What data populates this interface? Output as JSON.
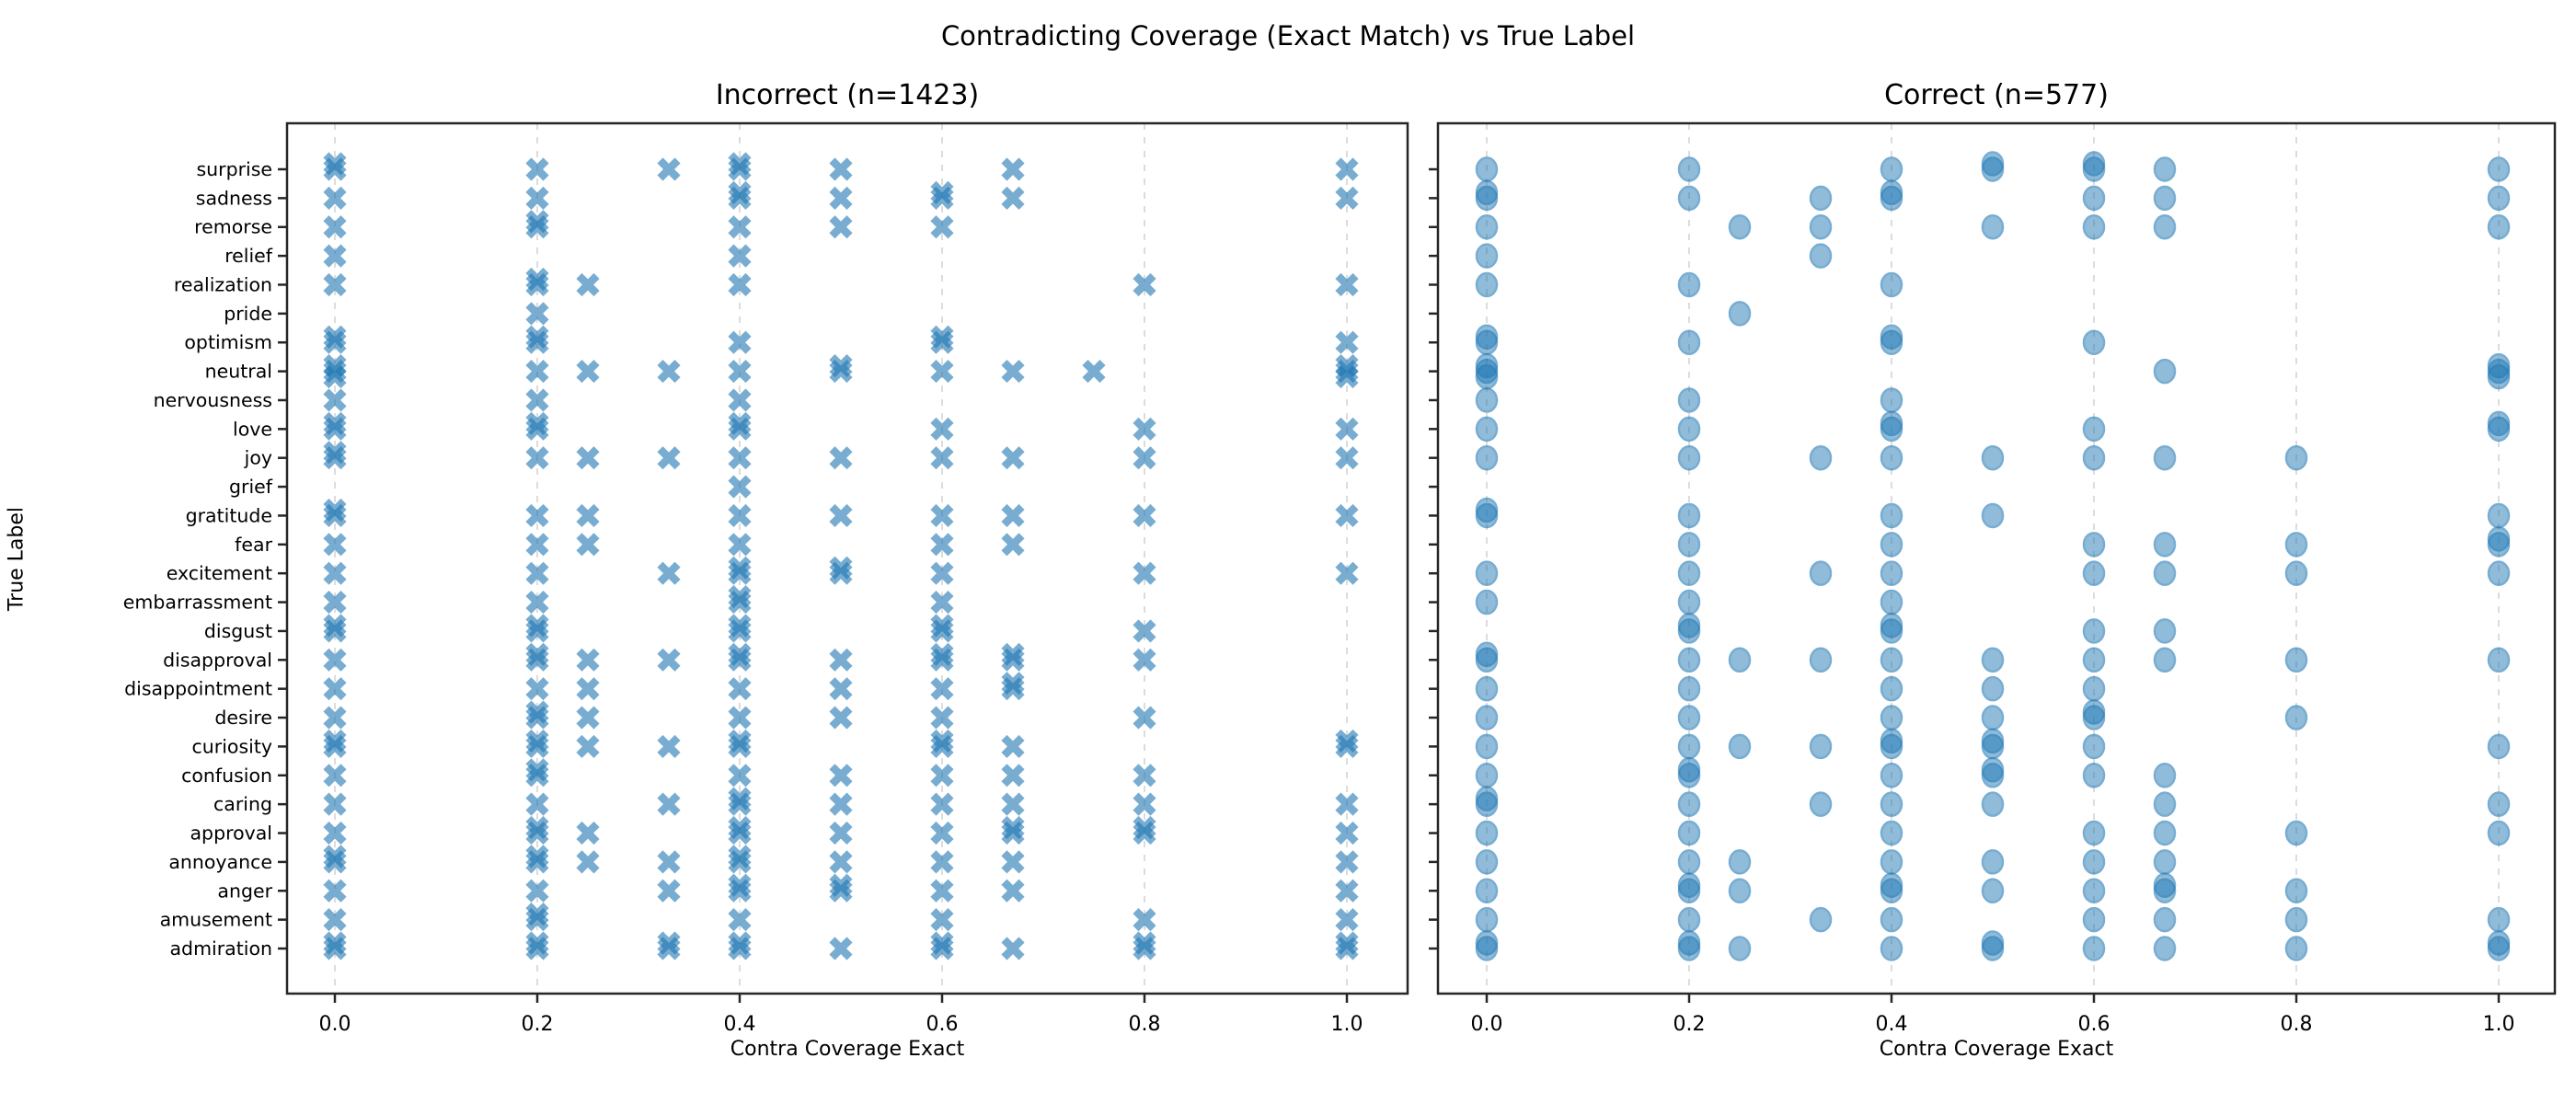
{
  "figure": {
    "title": "Contradicting Coverage (Exact Match) vs True Label",
    "xlabel": "Contra Coverage Exact",
    "ylabel": "True Label",
    "marker_color": "#1f77b4",
    "marker_alpha": 0.6,
    "grid_color": "#d9d9d9",
    "spine_color": "#262626"
  },
  "chart_data": [
    {
      "type": "scatter",
      "title": "Incorrect (n=1423)",
      "marker": "x",
      "xlabel": "Contra Coverage Exact",
      "ylabel": "True Label",
      "xlim": [
        -0.05,
        1.06
      ],
      "xticks": [
        0.0,
        0.2,
        0.4,
        0.6,
        0.8,
        1.0
      ],
      "grid": true,
      "rows": [
        {
          "label": "surprise",
          "x": [
            0,
            0,
            0.2,
            0.33,
            0.4,
            0.4,
            0.5,
            0.67,
            1.0
          ]
        },
        {
          "label": "sadness",
          "x": [
            0,
            0.2,
            0.4,
            0.4,
            0.5,
            0.6,
            0.6,
            0.67,
            1.0
          ]
        },
        {
          "label": "remorse",
          "x": [
            0,
            0.2,
            0.2,
            0.4,
            0.5,
            0.6
          ]
        },
        {
          "label": "relief",
          "x": [
            0,
            0.4
          ]
        },
        {
          "label": "realization",
          "x": [
            0,
            0.2,
            0.2,
            0.25,
            0.4,
            0.8,
            1.0
          ]
        },
        {
          "label": "pride",
          "x": [
            0.2
          ]
        },
        {
          "label": "optimism",
          "x": [
            0,
            0,
            0.2,
            0.2,
            0.4,
            0.6,
            0.6,
            1.0
          ]
        },
        {
          "label": "neutral",
          "x": [
            0,
            0,
            0,
            0.2,
            0.25,
            0.33,
            0.4,
            0.5,
            0.5,
            0.6,
            0.67,
            0.75,
            1.0,
            1.0,
            1.0
          ]
        },
        {
          "label": "nervousness",
          "x": [
            0,
            0.2,
            0.4
          ]
        },
        {
          "label": "love",
          "x": [
            0,
            0,
            0.2,
            0.2,
            0.4,
            0.4,
            0.6,
            0.8,
            1.0
          ]
        },
        {
          "label": "joy",
          "x": [
            0,
            0,
            0.2,
            0.25,
            0.33,
            0.4,
            0.5,
            0.6,
            0.67,
            0.8,
            1.0
          ]
        },
        {
          "label": "grief",
          "x": [
            0.4
          ]
        },
        {
          "label": "gratitude",
          "x": [
            0,
            0,
            0.2,
            0.25,
            0.4,
            0.5,
            0.6,
            0.67,
            0.8,
            1.0
          ]
        },
        {
          "label": "fear",
          "x": [
            0,
            0.2,
            0.25,
            0.4,
            0.6,
            0.67
          ]
        },
        {
          "label": "excitement",
          "x": [
            0,
            0.2,
            0.33,
            0.4,
            0.4,
            0.5,
            0.5,
            0.6,
            0.8,
            1.0
          ]
        },
        {
          "label": "embarrassment",
          "x": [
            0,
            0.2,
            0.4,
            0.4,
            0.6
          ]
        },
        {
          "label": "disgust",
          "x": [
            0,
            0,
            0.2,
            0.2,
            0.4,
            0.4,
            0.6,
            0.6,
            0.8
          ]
        },
        {
          "label": "disapproval",
          "x": [
            0,
            0.2,
            0.2,
            0.25,
            0.33,
            0.4,
            0.4,
            0.5,
            0.6,
            0.6,
            0.67,
            0.67,
            0.8
          ]
        },
        {
          "label": "disappointment",
          "x": [
            0,
            0.2,
            0.25,
            0.4,
            0.5,
            0.6,
            0.67,
            0.67
          ]
        },
        {
          "label": "desire",
          "x": [
            0,
            0.2,
            0.2,
            0.25,
            0.4,
            0.5,
            0.6,
            0.8
          ]
        },
        {
          "label": "curiosity",
          "x": [
            0,
            0,
            0.2,
            0.2,
            0.25,
            0.33,
            0.4,
            0.4,
            0.6,
            0.6,
            0.67,
            1.0,
            1.0
          ]
        },
        {
          "label": "confusion",
          "x": [
            0,
            0.2,
            0.2,
            0.4,
            0.5,
            0.6,
            0.67,
            0.8
          ]
        },
        {
          "label": "caring",
          "x": [
            0,
            0.2,
            0.33,
            0.4,
            0.4,
            0.5,
            0.6,
            0.67,
            0.8,
            1.0
          ]
        },
        {
          "label": "approval",
          "x": [
            0,
            0.2,
            0.2,
            0.25,
            0.4,
            0.4,
            0.5,
            0.6,
            0.67,
            0.67,
            0.8,
            0.8,
            1.0
          ]
        },
        {
          "label": "annoyance",
          "x": [
            0,
            0,
            0.2,
            0.2,
            0.25,
            0.33,
            0.4,
            0.4,
            0.5,
            0.6,
            0.67,
            1.0
          ]
        },
        {
          "label": "anger",
          "x": [
            0,
            0.2,
            0.33,
            0.4,
            0.4,
            0.5,
            0.5,
            0.6,
            0.67,
            1.0
          ]
        },
        {
          "label": "amusement",
          "x": [
            0,
            0.2,
            0.2,
            0.4,
            0.6,
            0.8,
            1.0
          ]
        },
        {
          "label": "admiration",
          "x": [
            0,
            0,
            0.2,
            0.2,
            0.33,
            0.33,
            0.4,
            0.4,
            0.5,
            0.6,
            0.6,
            0.67,
            0.8,
            0.8,
            1.0,
            1.0
          ]
        }
      ]
    },
    {
      "type": "scatter",
      "title": "Correct (n=577)",
      "marker": "circle",
      "xlabel": "Contra Coverage Exact",
      "xlim": [
        -0.05,
        1.06
      ],
      "xticks": [
        0.0,
        0.2,
        0.4,
        0.6,
        0.8,
        1.0
      ],
      "grid": true,
      "rows": [
        {
          "label": "surprise",
          "x": [
            0,
            0.2,
            0.4,
            0.5,
            0.5,
            0.6,
            0.6,
            0.67,
            1.0
          ]
        },
        {
          "label": "sadness",
          "x": [
            0,
            0,
            0.2,
            0.33,
            0.4,
            0.4,
            0.6,
            0.67,
            1.0
          ]
        },
        {
          "label": "remorse",
          "x": [
            0,
            0.25,
            0.33,
            0.5,
            0.6,
            0.67,
            1.0
          ]
        },
        {
          "label": "relief",
          "x": [
            0,
            0.33
          ]
        },
        {
          "label": "realization",
          "x": [
            0,
            0.2,
            0.4
          ]
        },
        {
          "label": "pride",
          "x": [
            0.25
          ]
        },
        {
          "label": "optimism",
          "x": [
            0,
            0,
            0.2,
            0.4,
            0.4,
            0.6
          ]
        },
        {
          "label": "neutral",
          "x": [
            0,
            0,
            0,
            0.67,
            1.0,
            1.0,
            1.0
          ]
        },
        {
          "label": "nervousness",
          "x": [
            0,
            0.2,
            0.4
          ]
        },
        {
          "label": "love",
          "x": [
            0,
            0.2,
            0.4,
            0.4,
            0.6,
            1.0,
            1.0
          ]
        },
        {
          "label": "joy",
          "x": [
            0,
            0.2,
            0.33,
            0.4,
            0.5,
            0.6,
            0.67,
            0.8
          ]
        },
        {
          "label": "grief",
          "x": []
        },
        {
          "label": "gratitude",
          "x": [
            0,
            0,
            0.2,
            0.4,
            0.5,
            1.0
          ]
        },
        {
          "label": "fear",
          "x": [
            0.2,
            0.4,
            0.6,
            0.67,
            0.8,
            1.0,
            1.0
          ]
        },
        {
          "label": "excitement",
          "x": [
            0,
            0.2,
            0.33,
            0.4,
            0.6,
            0.67,
            0.8,
            1.0
          ]
        },
        {
          "label": "embarrassment",
          "x": [
            0,
            0.2,
            0.4
          ]
        },
        {
          "label": "disgust",
          "x": [
            0.2,
            0.2,
            0.4,
            0.4,
            0.6,
            0.67
          ]
        },
        {
          "label": "disapproval",
          "x": [
            0,
            0,
            0.2,
            0.25,
            0.33,
            0.4,
            0.5,
            0.6,
            0.67,
            0.8,
            1.0
          ]
        },
        {
          "label": "disappointment",
          "x": [
            0,
            0.2,
            0.4,
            0.5,
            0.6
          ]
        },
        {
          "label": "desire",
          "x": [
            0,
            0.2,
            0.4,
            0.5,
            0.6,
            0.6,
            0.8
          ]
        },
        {
          "label": "curiosity",
          "x": [
            0,
            0.2,
            0.25,
            0.33,
            0.4,
            0.4,
            0.5,
            0.5,
            0.6,
            1.0
          ]
        },
        {
          "label": "confusion",
          "x": [
            0,
            0.2,
            0.2,
            0.4,
            0.5,
            0.5,
            0.6,
            0.67
          ]
        },
        {
          "label": "caring",
          "x": [
            0,
            0,
            0.2,
            0.33,
            0.4,
            0.5,
            0.67,
            1.0
          ]
        },
        {
          "label": "approval",
          "x": [
            0,
            0.2,
            0.4,
            0.6,
            0.67,
            0.8,
            1.0
          ]
        },
        {
          "label": "annoyance",
          "x": [
            0,
            0.2,
            0.25,
            0.4,
            0.5,
            0.6,
            0.67
          ]
        },
        {
          "label": "anger",
          "x": [
            0,
            0.2,
            0.2,
            0.25,
            0.4,
            0.4,
            0.5,
            0.6,
            0.67,
            0.67,
            0.8
          ]
        },
        {
          "label": "amusement",
          "x": [
            0,
            0.2,
            0.33,
            0.4,
            0.6,
            0.67,
            0.8,
            1.0
          ]
        },
        {
          "label": "admiration",
          "x": [
            0,
            0,
            0.2,
            0.2,
            0.25,
            0.4,
            0.5,
            0.5,
            0.6,
            0.67,
            0.8,
            1.0,
            1.0
          ]
        }
      ]
    }
  ]
}
